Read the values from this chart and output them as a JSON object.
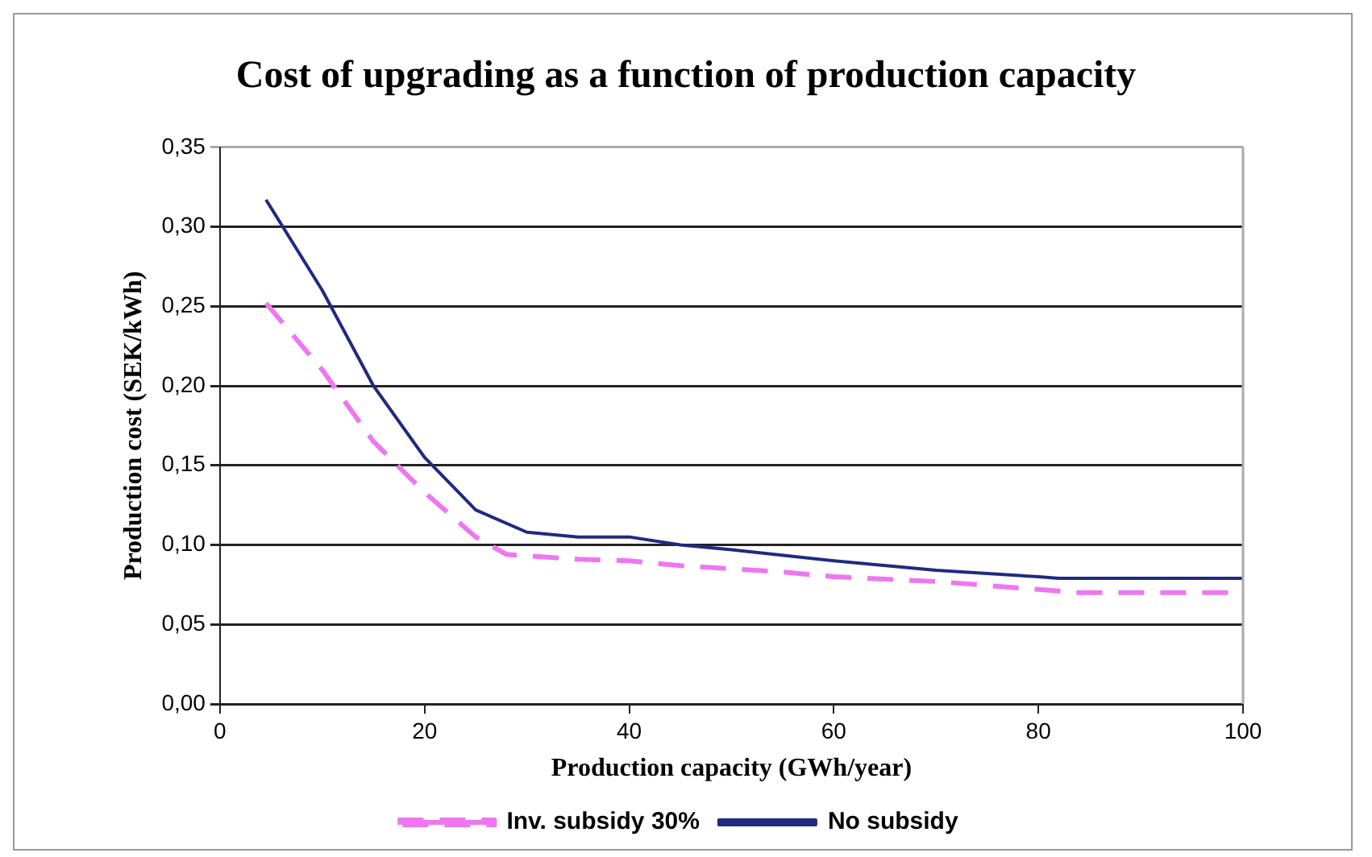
{
  "chart_data": {
    "type": "line",
    "title": "Cost of upgrading as a function of production capacity",
    "xlabel": "Production capacity (GWh/year)",
    "ylabel": "Production cost (SEK/kWh)",
    "xlim": [
      0,
      100
    ],
    "xticks": [
      0,
      20,
      40,
      60,
      80,
      100
    ],
    "ylim": [
      0,
      0.35
    ],
    "yticks": [
      {
        "value": 0,
        "label": "0,00"
      },
      {
        "value": 0.05,
        "label": "0,05"
      },
      {
        "value": 0.1,
        "label": "0,10"
      },
      {
        "value": 0.15,
        "label": "0,15"
      },
      {
        "value": 0.2,
        "label": "0,20"
      },
      {
        "value": 0.25,
        "label": "0,25"
      },
      {
        "value": 0.3,
        "label": "0,30"
      },
      {
        "value": 0.35,
        "label": "0,35"
      }
    ],
    "grid": "y",
    "legend": "bottom",
    "marker": "none",
    "series": [
      {
        "name": "Inv. subsidy 30%",
        "color": "#ee77f0",
        "line_style": "dashed",
        "x": [
          4.5,
          10,
          15,
          20,
          25,
          28,
          35,
          40,
          45,
          55,
          60,
          70,
          80,
          84,
          100
        ],
        "values": [
          0.252,
          0.21,
          0.165,
          0.133,
          0.105,
          0.094,
          0.091,
          0.09,
          0.087,
          0.083,
          0.08,
          0.077,
          0.072,
          0.07,
          0.07
        ]
      },
      {
        "name": "No subsidy",
        "color": "#1f2a80",
        "line_style": "solid",
        "x": [
          4.5,
          10,
          15,
          20,
          25,
          30,
          35,
          40,
          45,
          50,
          60,
          70,
          80,
          82,
          100
        ],
        "values": [
          0.317,
          0.26,
          0.2,
          0.155,
          0.122,
          0.108,
          0.105,
          0.105,
          0.1,
          0.097,
          0.09,
          0.084,
          0.08,
          0.079,
          0.079
        ]
      }
    ]
  }
}
